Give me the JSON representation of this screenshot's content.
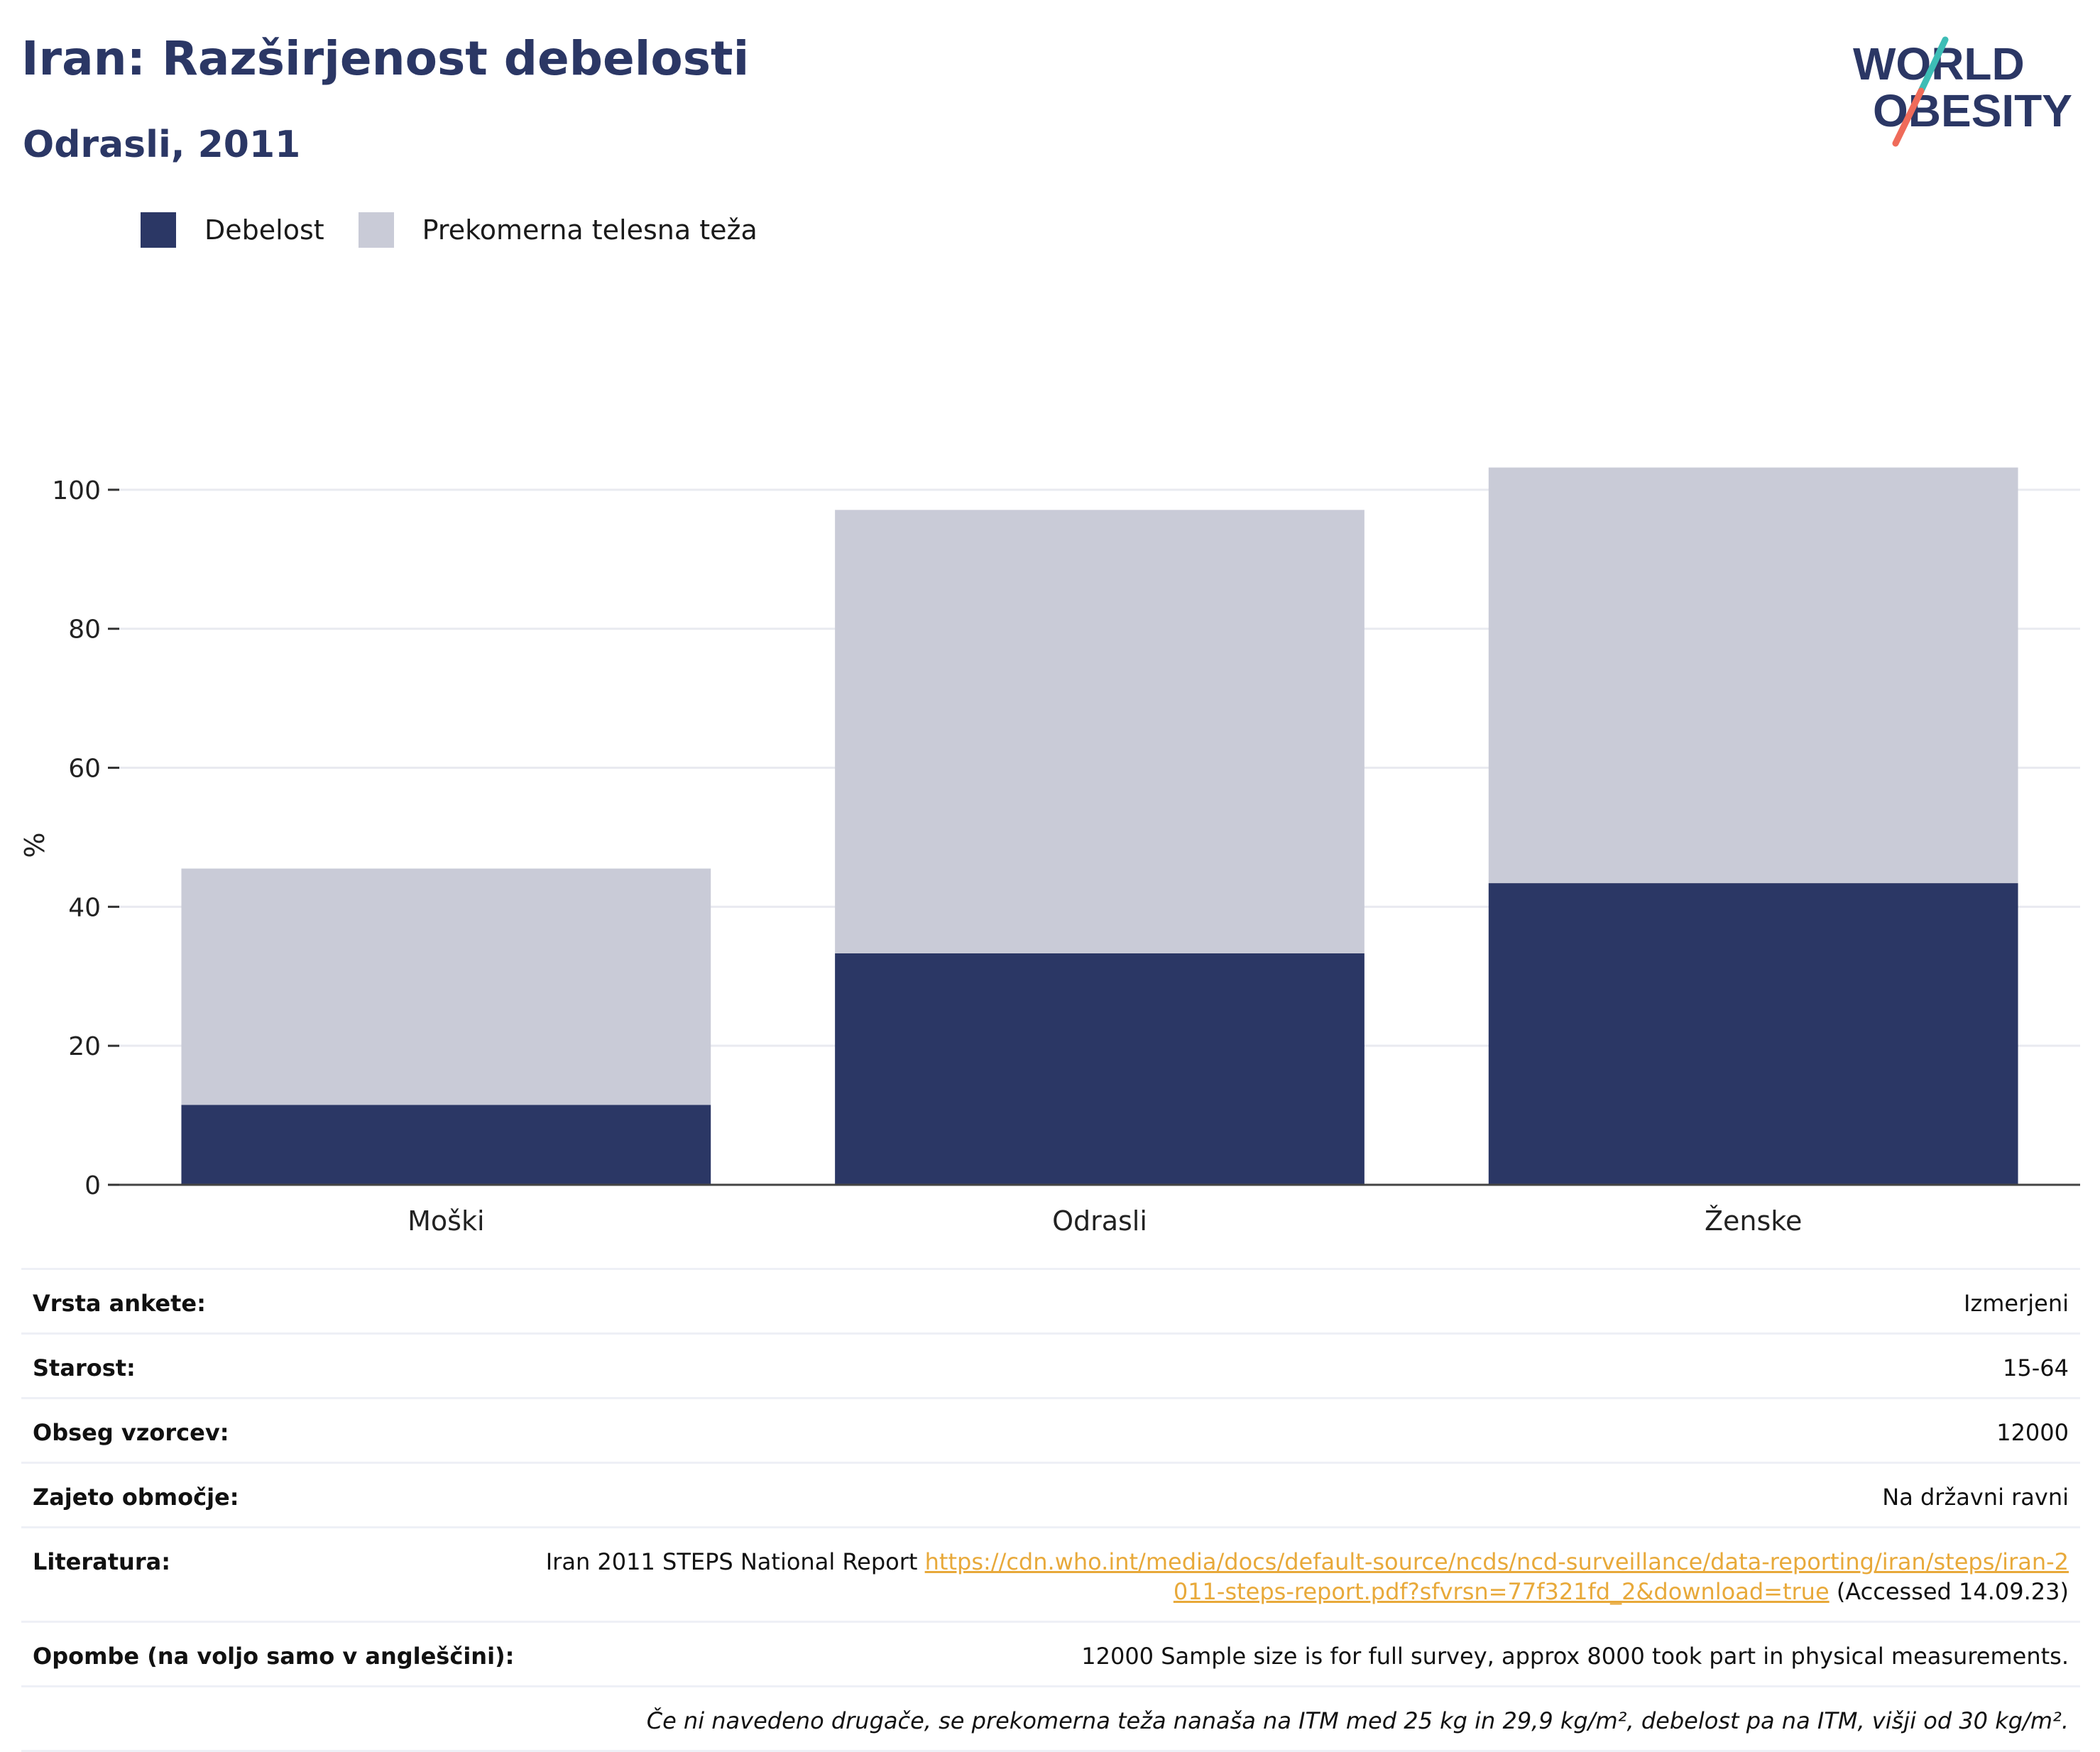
{
  "header": {
    "title": "Iran: Razširjenost debelosti",
    "subtitle": "Odrasli, 2011"
  },
  "logo": {
    "line1": "WORLD",
    "line2": "OBESITY",
    "accent_teal": "#3dbdb6",
    "accent_coral": "#ef6b5a",
    "text_color": "#2b3765"
  },
  "legend": [
    {
      "label": "Debelost",
      "color": "#2b3765"
    },
    {
      "label": "Prekomerna telesna teža",
      "color": "#c9cbd7"
    }
  ],
  "chart_data": {
    "type": "bar",
    "stacked": true,
    "categories": [
      "Moški",
      "Odrasli",
      "Ženske"
    ],
    "series": [
      {
        "name": "Debelost",
        "color": "#2b3765",
        "values": [
          11.5,
          33.3,
          43.4
        ]
      },
      {
        "name": "Prekomerna telesna teža",
        "color": "#c9cbd7",
        "values": [
          34.0,
          63.8,
          59.8
        ]
      }
    ],
    "ylabel": "%",
    "ylim": [
      0,
      110
    ],
    "yticks": [
      0,
      20,
      40,
      60,
      80,
      100
    ],
    "grid": true,
    "legend_position": "top-left"
  },
  "meta": {
    "survey_type": {
      "label": "Vrsta ankete:",
      "value": "Izmerjeni"
    },
    "age": {
      "label": "Starost:",
      "value": "15-64"
    },
    "sample_size": {
      "label": "Obseg vzorcev:",
      "value": "12000"
    },
    "area": {
      "label": "Zajeto območje:",
      "value": "Na državni ravni"
    },
    "literature": {
      "label": "Literatura:",
      "text_before": "Iran 2011 STEPS National Report ",
      "link": "https://cdn.who.int/media/docs/default-source/ncds/ncd-surveillance/data-reporting/iran/steps/iran-2011-steps-report.pdf?sfvrsn=77f321fd_2&download=true",
      "text_after": " (Accessed 14.09.23)"
    },
    "notes": {
      "label": "Opombe (na voljo samo v angleščini):",
      "value": "12000 Sample size is for full survey, approx 8000 took part in physical measurements."
    },
    "footnote": "Če ni navedeno drugače, se prekomerna teža nanaša na ITM med 25 kg in 29,9 kg/m², debelost pa na ITM, višji od 30 kg/m²."
  }
}
